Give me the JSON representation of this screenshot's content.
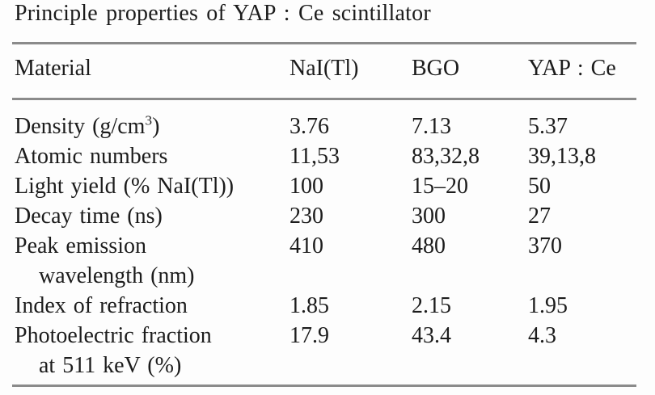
{
  "colors": {
    "background": "#fdfdfd",
    "rule": "#8b8b8b",
    "text": "#1c1c1c"
  },
  "table": {
    "title": "Principle properties of YAP : Ce scintillator",
    "columns": [
      "Material",
      "NaI(Tl)",
      "BGO",
      "YAP : Ce"
    ],
    "rows": [
      {
        "label_pre": "Density (g/cm",
        "label_sup": "3",
        "label_post": ")",
        "values": [
          "3.76",
          "7.13",
          "5.37"
        ]
      },
      {
        "label": "Atomic numbers",
        "values": [
          "11,53",
          "83,32,8",
          "39,13,8"
        ]
      },
      {
        "label": "Light yield (% NaI(Tl))",
        "values": [
          "100",
          "15–20",
          "50"
        ]
      },
      {
        "label": "Decay time (ns)",
        "values": [
          "230",
          "300",
          "27"
        ]
      },
      {
        "label": "Peak emission",
        "label_line2": "wavelength (nm)",
        "values": [
          "410",
          "480",
          "370"
        ]
      },
      {
        "label": "Index of refraction",
        "values": [
          "1.85",
          "2.15",
          "1.95"
        ]
      },
      {
        "label": "Photoelectric fraction",
        "label_line2": "at 511 keV (%)",
        "values": [
          "17.9",
          "43.4",
          "4.3"
        ]
      }
    ]
  }
}
